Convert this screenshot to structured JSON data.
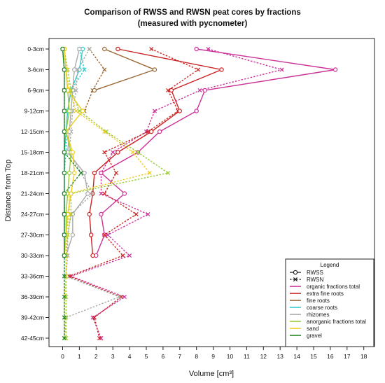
{
  "chart_data": {
    "type": "line",
    "title": "Comparison of RWSS and RWSN peat cores by fractions",
    "subtitle": "(measured with pycnometer)",
    "xlabel": "Volume [cm³]",
    "ylabel": "Distance from Top",
    "xlim": [
      0,
      18
    ],
    "x_ticks": [
      0,
      1,
      2,
      3,
      4,
      5,
      6,
      7,
      8,
      9,
      10,
      11,
      12,
      13,
      14,
      15,
      16,
      17,
      18
    ],
    "categories": [
      "0-3cm",
      "3-6cm",
      "6-9cm",
      "9-12cm",
      "12-15cm",
      "15-18cm",
      "18-21cm",
      "21-24cm",
      "24-27cm",
      "27-30cm",
      "30-33cm",
      "33-36cm",
      "36-39cm",
      "39-42cm",
      "42-45cm"
    ],
    "grid": false,
    "legend": {
      "title": "Legend",
      "placement": "bottom-right",
      "style_entries": [
        {
          "label": "RWSS",
          "style": "solid",
          "marker": "circle"
        },
        {
          "label": "RWSN",
          "style": "dotted",
          "marker": "x"
        }
      ]
    },
    "series": [
      {
        "name": "organic fractions total",
        "color": "#cc3399",
        "RWSS": [
          8.0,
          16.3,
          8.5,
          8.0,
          5.8,
          4.5,
          2.3,
          3.7,
          2.3,
          2.5,
          2.0,
          null,
          null,
          null,
          null
        ],
        "RWSN": [
          8.7,
          13.1,
          8.2,
          5.5,
          5.0,
          3.0,
          2.3,
          2.3,
          5.1,
          2.7,
          4.0,
          0.5,
          3.7,
          1.8,
          2.3
        ]
      },
      {
        "name": "extra fine roots",
        "color": "#cc2222",
        "RWSS": [
          3.3,
          9.5,
          6.5,
          7.0,
          5.3,
          3.3,
          1.9,
          1.8,
          1.6,
          1.7,
          1.8,
          null,
          null,
          null,
          null
        ],
        "RWSN": [
          5.3,
          8.1,
          6.3,
          6.9,
          5.1,
          2.5,
          3.2,
          2.5,
          4.4,
          2.5,
          3.6,
          0.4,
          3.5,
          1.9,
          2.2
        ]
      },
      {
        "name": "fine roots",
        "color": "#996633",
        "RWSS": [
          2.5,
          5.5,
          1.9,
          null,
          null,
          null,
          null,
          null,
          null,
          null,
          null,
          null,
          null,
          null,
          null
        ],
        "RWSN": [
          1.6,
          2.5,
          1.8,
          1.3,
          null,
          null,
          null,
          null,
          null,
          null,
          null,
          null,
          null,
          null,
          null
        ]
      },
      {
        "name": "coarse roots",
        "color": "#33cccc",
        "RWSS": [
          1.2,
          1.0,
          0.5,
          0.3,
          0.2,
          0.1,
          0.1,
          0.1,
          0.1,
          0.1,
          0.1,
          null,
          null,
          null,
          null
        ],
        "RWSN": [
          1.0,
          1.3,
          0.5,
          0.3,
          0.2,
          0.2,
          0.1,
          0.1,
          0.1,
          0.1,
          0.1,
          0.1,
          0.1,
          0.1,
          0.1
        ]
      },
      {
        "name": "rhizomes",
        "color": "#aaaaaa",
        "RWSS": [
          1.0,
          0.7,
          0.6,
          0.5,
          0.4,
          0.3,
          1.3,
          1.5,
          0.6,
          0.6,
          0.2,
          null,
          null,
          null,
          null
        ],
        "RWSN": [
          1.6,
          0.9,
          0.8,
          0.6,
          0.5,
          0.4,
          1.1,
          1.8,
          0.5,
          0.3,
          0.3,
          0.2,
          3.4,
          0.2,
          0.1
        ]
      },
      {
        "name": "anorganic fractions total",
        "color": "#99cc33",
        "RWSS": [
          0.1,
          0.2,
          0.3,
          0.4,
          0.2,
          0.5,
          0.4,
          0.3,
          0.2,
          0.2,
          0.1,
          null,
          null,
          null,
          null
        ],
        "RWSN": [
          0.1,
          0.3,
          0.5,
          1.0,
          2.6,
          4.5,
          6.3,
          0.5,
          0.5,
          0.3,
          0.2,
          0.2,
          0.2,
          0.2,
          0.2
        ]
      },
      {
        "name": "sand",
        "color": "#eecc22",
        "RWSS": [
          0.1,
          0.2,
          0.3,
          1.2,
          0.2,
          0.6,
          0.7,
          0.5,
          0.3,
          0.2,
          0.1,
          null,
          null,
          null,
          null
        ],
        "RWSN": [
          0.1,
          0.2,
          0.4,
          0.8,
          2.5,
          4.2,
          5.2,
          0.4,
          0.4,
          0.2,
          0.2,
          0.2,
          0.1,
          0.1,
          0.1
        ]
      },
      {
        "name": "gravel",
        "color": "#228822",
        "RWSS": [
          0.0,
          0.1,
          0.1,
          0.1,
          0.1,
          0.1,
          0.1,
          0.1,
          0.1,
          0.1,
          0.1,
          null,
          null,
          null,
          null
        ],
        "RWSN": [
          0.0,
          0.1,
          0.1,
          0.1,
          0.1,
          0.1,
          1.1,
          0.1,
          0.1,
          0.1,
          0.1,
          0.1,
          0.1,
          0.1,
          0.1
        ]
      }
    ]
  }
}
